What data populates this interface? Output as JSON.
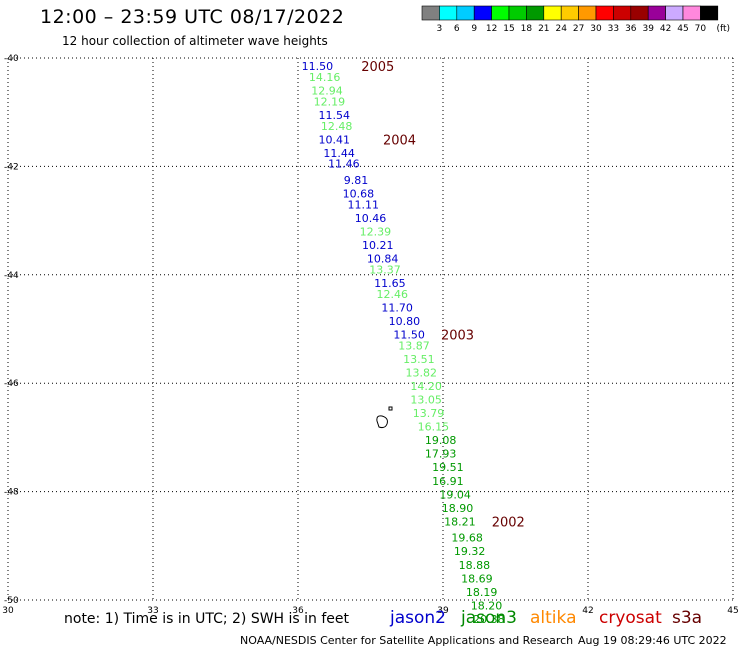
{
  "header": {
    "title": "12:00 – 23:59 UTC 08/17/2022",
    "subtitle": "12 hour collection of altimeter wave heights"
  },
  "legend": {
    "colors": [
      "#808080",
      "#00ffff",
      "#00ccff",
      "#0000ff",
      "#00ff00",
      "#00cc00",
      "#009900",
      "#ffff00",
      "#ffcc00",
      "#ff9900",
      "#ff0000",
      "#cc0000",
      "#990000",
      "#990099",
      "#ccaaff",
      "#ff88dd",
      "#000000"
    ],
    "labels": [
      "3",
      "6",
      "9",
      "12",
      "15",
      "18",
      "21",
      "24",
      "27",
      "30",
      "33",
      "36",
      "39",
      "42",
      "45",
      "70"
    ],
    "unit": "(ft)"
  },
  "footer": {
    "note": "note: 1) Time is in UTC; 2) SWH is in feet",
    "credit": "NOAA/NESDIS Center for Satellite Applications and Research",
    "timestamp": "Aug 19 08:29:46 UTC 2022"
  },
  "missions": [
    {
      "name": "jason2",
      "color": "#0000cc"
    },
    {
      "name": "jason3",
      "color": "#008800"
    },
    {
      "name": "altika",
      "color": "#ff8800"
    },
    {
      "name": "cryosat",
      "color": "#cc0000"
    },
    {
      "name": "s3a",
      "color": "#660000"
    }
  ],
  "chart_data": {
    "type": "scatter",
    "title": "12:00 – 23:59 UTC 08/17/2022",
    "subtitle": "12 hour collection of altimeter wave heights",
    "xlim": [
      30,
      45
    ],
    "ylim": [
      -50,
      -40
    ],
    "xticks": [
      "30",
      "33",
      "36",
      "39",
      "42",
      "45"
    ],
    "yticks": [
      "-40",
      "-42",
      "-44",
      "-46",
      "-48",
      "-50"
    ],
    "grid": true,
    "series": [
      {
        "name": "jason2",
        "color": "#0000cc",
        "points": [
          {
            "x": 36.4,
            "y": -40.15,
            "v": "11.50"
          },
          {
            "x": 36.75,
            "y": -41.05,
            "v": "11.54"
          },
          {
            "x": 36.75,
            "y": -41.5,
            "v": "10.41"
          },
          {
            "x": 36.85,
            "y": -41.75,
            "v": "11.44"
          },
          {
            "x": 36.95,
            "y": -41.95,
            "v": "11.46"
          },
          {
            "x": 37.2,
            "y": -42.25,
            "v": "9.81"
          },
          {
            "x": 37.25,
            "y": -42.5,
            "v": "10.68"
          },
          {
            "x": 37.35,
            "y": -42.7,
            "v": "11.11"
          },
          {
            "x": 37.5,
            "y": -42.95,
            "v": "10.46"
          },
          {
            "x": 37.65,
            "y": -43.45,
            "v": "10.21"
          },
          {
            "x": 37.75,
            "y": -43.7,
            "v": "10.84"
          },
          {
            "x": 37.9,
            "y": -44.15,
            "v": "11.65"
          },
          {
            "x": 38.05,
            "y": -44.6,
            "v": "11.70"
          },
          {
            "x": 38.2,
            "y": -44.85,
            "v": "10.80"
          },
          {
            "x": 38.3,
            "y": -45.1,
            "v": "11.50"
          }
        ]
      },
      {
        "name": "jason2-light",
        "color": "#66ee66",
        "points": [
          {
            "x": 36.55,
            "y": -40.35,
            "v": "14.16"
          },
          {
            "x": 36.6,
            "y": -40.6,
            "v": "12.94"
          },
          {
            "x": 36.65,
            "y": -40.8,
            "v": "12.19"
          },
          {
            "x": 36.8,
            "y": -41.25,
            "v": "12.48"
          },
          {
            "x": 37.6,
            "y": -43.2,
            "v": "12.39"
          },
          {
            "x": 37.8,
            "y": -43.9,
            "v": "13.37"
          },
          {
            "x": 37.95,
            "y": -44.35,
            "v": "12.46"
          },
          {
            "x": 38.4,
            "y": -45.3,
            "v": "13.87"
          },
          {
            "x": 38.5,
            "y": -45.55,
            "v": "13.51"
          },
          {
            "x": 38.55,
            "y": -45.8,
            "v": "13.82"
          },
          {
            "x": 38.65,
            "y": -46.05,
            "v": "14.20"
          },
          {
            "x": 38.65,
            "y": -46.3,
            "v": "13.05"
          },
          {
            "x": 38.7,
            "y": -46.55,
            "v": "13.79"
          },
          {
            "x": 38.8,
            "y": -46.8,
            "v": "16.15"
          }
        ]
      },
      {
        "name": "jason3-green",
        "color": "#009900",
        "points": [
          {
            "x": 38.95,
            "y": -47.05,
            "v": "19.08"
          },
          {
            "x": 38.95,
            "y": -47.3,
            "v": "17.93"
          },
          {
            "x": 39.1,
            "y": -47.55,
            "v": "19.51"
          },
          {
            "x": 39.1,
            "y": -47.8,
            "v": "16.91"
          },
          {
            "x": 39.25,
            "y": -48.05,
            "v": "19.04"
          },
          {
            "x": 39.3,
            "y": -48.3,
            "v": "18.90"
          },
          {
            "x": 39.35,
            "y": -48.55,
            "v": "18.21"
          },
          {
            "x": 39.5,
            "y": -48.85,
            "v": "19.68"
          },
          {
            "x": 39.55,
            "y": -49.1,
            "v": "19.32"
          },
          {
            "x": 39.65,
            "y": -49.35,
            "v": "18.88"
          },
          {
            "x": 39.7,
            "y": -49.6,
            "v": "18.69"
          },
          {
            "x": 39.8,
            "y": -49.85,
            "v": "18.19"
          },
          {
            "x": 39.9,
            "y": -50.1,
            "v": "18.20"
          },
          {
            "x": 39.95,
            "y": -50.35,
            "v": "20.38"
          }
        ]
      }
    ],
    "annotations": [
      {
        "x": 37.65,
        "y": -40.15,
        "text": "2005"
      },
      {
        "x": 38.1,
        "y": -41.5,
        "text": "2004"
      },
      {
        "x": 39.3,
        "y": -45.1,
        "text": "2003"
      },
      {
        "x": 40.35,
        "y": -48.55,
        "text": "2002"
      }
    ]
  }
}
